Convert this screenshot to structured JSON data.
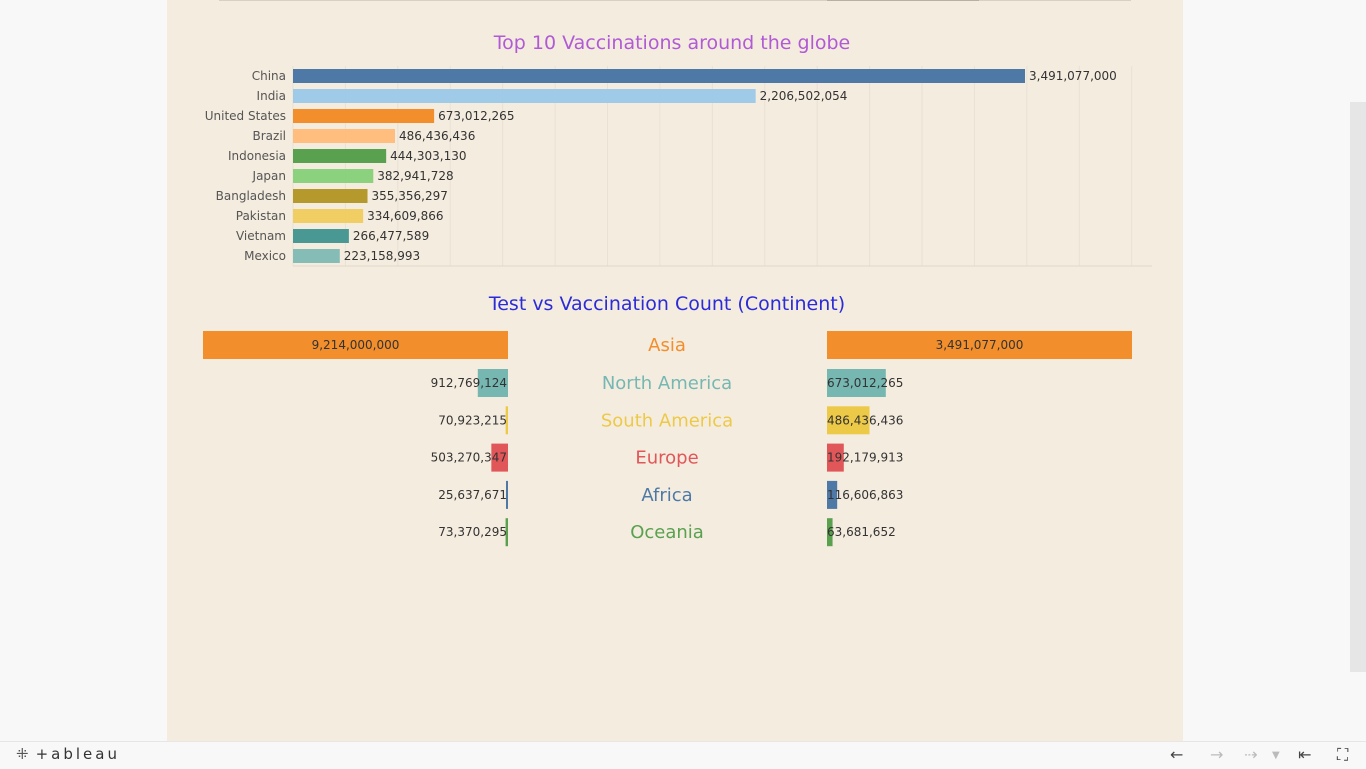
{
  "brand": {
    "name": "+ableau"
  },
  "colors": {
    "background": "#f4ecdf",
    "title1": "#b15ad6",
    "title2": "#2b2bd8"
  },
  "toolbar": {
    "undo_icon": "arrow-left-icon",
    "redo_icon": "arrow-right-icon",
    "share_icon": "share-icon",
    "revert_icon": "revert-icon",
    "fullscreen_icon": "fullscreen-icon"
  },
  "chart_data": [
    {
      "type": "bar",
      "orientation": "horizontal",
      "title": "Top 10 Vaccinations around the globe",
      "categories": [
        "China",
        "India",
        "United States",
        "Brazil",
        "Indonesia",
        "Japan",
        "Bangladesh",
        "Pakistan",
        "Vietnam",
        "Mexico"
      ],
      "values": [
        3491077000,
        2206502054,
        673012265,
        486436436,
        444303130,
        382941728,
        355356297,
        334609866,
        266477589,
        223158993
      ],
      "value_labels": [
        "3,491,077,000",
        "2,206,502,054",
        "673,012,265",
        "486,436,436",
        "444,303,130",
        "382,941,728",
        "355,356,297",
        "334,609,866",
        "266,477,589",
        "223,158,993"
      ],
      "colors": [
        "#4e79a7",
        "#a0cbe8",
        "#f28e2b",
        "#ffbe7d",
        "#59a14f",
        "#8cd17d",
        "#b6992d",
        "#f1ce63",
        "#499894",
        "#86bcb6"
      ],
      "xlim": [
        0,
        4000000000
      ],
      "grid": true
    },
    {
      "type": "bar",
      "orientation": "horizontal-butterfly",
      "title": "Test vs Vaccination Count (Continent)",
      "categories": [
        "Asia",
        "North America",
        "South America",
        "Europe",
        "Africa",
        "Oceania"
      ],
      "series": [
        {
          "values": [
            9214000000,
            912769124,
            70923215,
            503270347,
            25637671,
            73370295
          ],
          "value_labels": [
            "9,214,000,000",
            "912,769,124",
            "70,923,215",
            "503,270,347",
            "25,637,671",
            "73,370,295"
          ]
        },
        {
          "values": [
            3491077000,
            673012265,
            486436436,
            192179913,
            116606863,
            63681652
          ],
          "value_labels": [
            "3,491,077,000",
            "673,012,265",
            "486,436,436",
            "192,179,913",
            "116,606,863",
            "63,681,652"
          ]
        }
      ],
      "colors": [
        "#f28e2b",
        "#76b7b2",
        "#edc948",
        "#e15759",
        "#4e79a7",
        "#59a14f"
      ]
    }
  ]
}
